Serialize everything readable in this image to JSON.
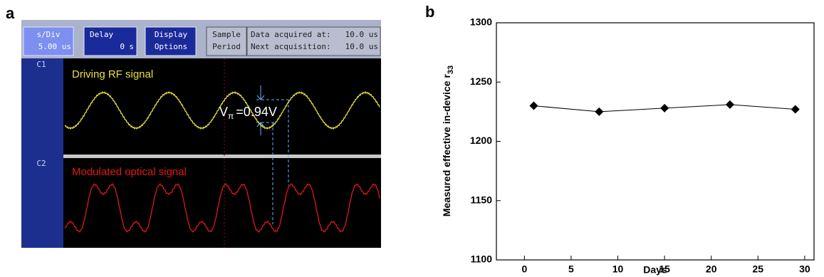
{
  "panel_a": {
    "label": "a",
    "buttons": {
      "sdiv": [
        "s/Div",
        "5.00 us"
      ],
      "delay": [
        "Delay",
        "0",
        "s"
      ],
      "display": [
        "Display",
        "Options"
      ],
      "sample": [
        "Sample",
        "Period"
      ],
      "acq": [
        [
          "Data acquired at:",
          "10.0 us"
        ],
        [
          "Next acquisition:",
          "10.0 us"
        ]
      ]
    },
    "channels": [
      "C1",
      "C2"
    ],
    "traces": [
      "Driving RF signal",
      "Modulated optical signal"
    ],
    "annotation": {
      "symbol": "V",
      "sub": "π",
      "value": "=0.94V"
    }
  },
  "chart_data": {
    "type": "line",
    "label": "b",
    "xlabel": "Days",
    "ylabel": "Measured effective in-device r",
    "ylabel_sub": "33",
    "x": [
      1,
      8,
      15,
      22,
      29
    ],
    "values": [
      1230,
      1225,
      1228,
      1231,
      1227
    ],
    "color": "#000000",
    "xlim": [
      -3,
      31
    ],
    "xticks": [
      0,
      5,
      10,
      15,
      20,
      25,
      30
    ],
    "ylim": [
      1100,
      1300
    ],
    "yticks": [
      1100,
      1150,
      1200,
      1250,
      1300
    ]
  }
}
